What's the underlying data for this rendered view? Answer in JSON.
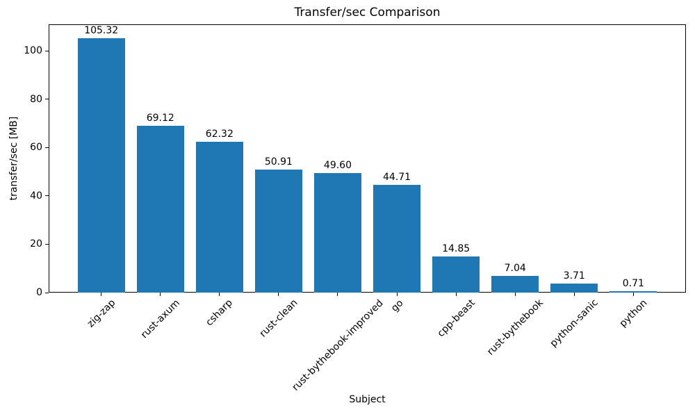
{
  "chart_data": {
    "type": "bar",
    "title": "Transfer/sec Comparison",
    "xlabel": "Subject",
    "ylabel": "transfer/sec [MB]",
    "categories": [
      "zig-zap",
      "rust-axum",
      "csharp",
      "rust-clean",
      "rust-bythebook-improved",
      "go",
      "cpp-beast",
      "rust-bythebook",
      "python-sanic",
      "python"
    ],
    "values": [
      105.32,
      69.12,
      62.32,
      50.91,
      49.6,
      44.71,
      14.85,
      7.04,
      3.71,
      0.71
    ],
    "value_labels": [
      "105.32",
      "69.12",
      "62.32",
      "50.91",
      "49.60",
      "44.71",
      "14.85",
      "7.04",
      "3.71",
      "0.71"
    ],
    "yticks": [
      0,
      20,
      40,
      60,
      80,
      100
    ],
    "ylim": [
      0,
      111
    ],
    "xtick_rotation_deg": 45,
    "grid": false,
    "bar_color": "#1f77b4",
    "text_color": "#000000",
    "background_color": "#ffffff"
  }
}
